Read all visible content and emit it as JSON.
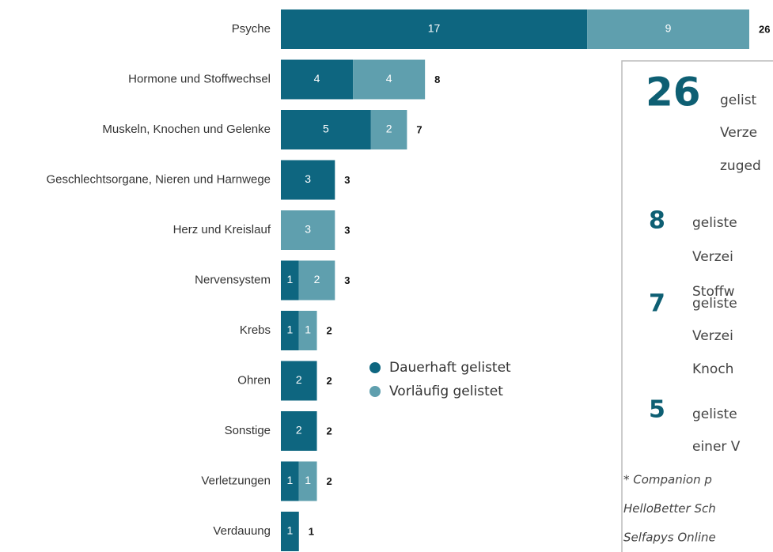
{
  "chart_data": {
    "type": "bar",
    "orientation": "horizontal",
    "stacked": true,
    "categories": [
      "Psyche",
      "Hormone und Stoffwechsel",
      "Muskeln, Knochen und Gelenke",
      "Geschlechtsorgane, Nieren und Harnwege",
      "Herz und Kreislauf",
      "Nervensystem",
      "Krebs",
      "Ohren",
      "Sonstige",
      "Verletzungen",
      "Verdauung"
    ],
    "series": [
      {
        "name": "Dauerhaft gelistet",
        "color": "#0e6680",
        "values": [
          17,
          4,
          5,
          3,
          null,
          1,
          1,
          2,
          2,
          1,
          1
        ]
      },
      {
        "name": "Vorläufig gelistet",
        "color": "#5f9fae",
        "values": [
          9,
          4,
          2,
          null,
          3,
          2,
          1,
          null,
          null,
          1,
          null
        ]
      }
    ],
    "totals": [
      26,
      8,
      7,
      3,
      3,
      3,
      2,
      2,
      2,
      2,
      1
    ]
  },
  "info_box": {
    "items": [
      {
        "number": 26,
        "lines": [
          "gelist",
          "Verze",
          "zuged"
        ]
      },
      {
        "number": 8,
        "lines": [
          "geliste",
          "Verzei",
          "Stoffw"
        ]
      },
      {
        "number": 7,
        "lines": [
          "geliste",
          "Verzei",
          "Knoch"
        ]
      },
      {
        "number": 5,
        "lines": [
          "geliste",
          "einer V"
        ]
      }
    ],
    "footnote": [
      "* Companion p",
      "HelloBetter Sch",
      "Selfapys Online"
    ]
  }
}
